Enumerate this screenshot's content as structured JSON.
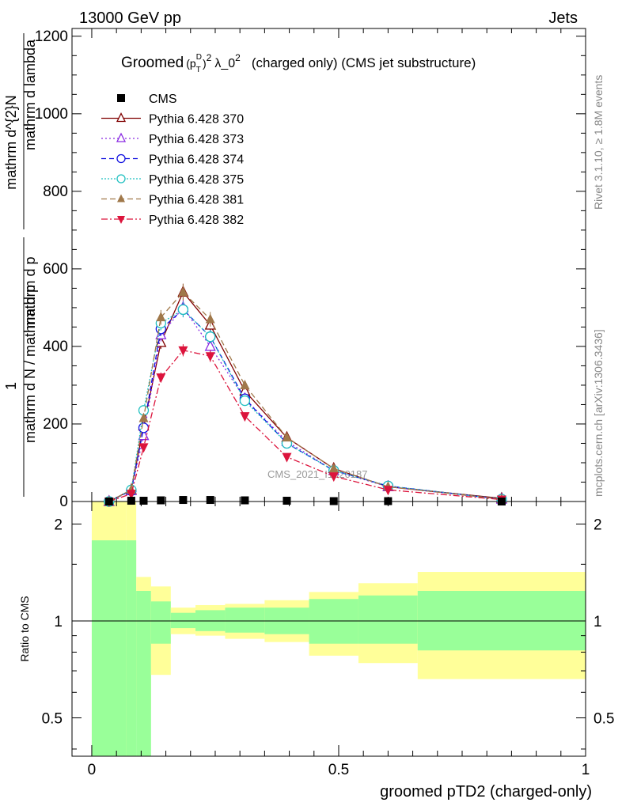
{
  "header": {
    "left": "13000 GeV pp",
    "right": "Jets"
  },
  "side_labels": {
    "top": "Rivet 3.1.10, ≥ 1.8M events",
    "bottom": "mcplots.cern.ch [arXiv:1306.3436]"
  },
  "watermark": "CMS_2021_I1920187",
  "colors": {
    "CMS": "#000000",
    "Pythia 6.428 370": "#800000",
    "Pythia 6.428 373": "#8a2be2",
    "Pythia 6.428 374": "#1010e0",
    "Pythia 6.428 375": "#20c0c0",
    "Pythia 6.428 381": "#a0784a",
    "Pythia 6.428 382": "#dc143c",
    "band_inner": "#99ff99",
    "band_outer": "#ffff99"
  },
  "chart_data": [
    {
      "type": "line",
      "title": "Groomed (p_T^D)^2 λ_0^2 (charged only) (CMS jet substructure)",
      "title_parts": {
        "lead": "Groomed",
        "p": "(p",
        "sub": "T",
        "sup_d": "D",
        "close": ")",
        "sup2": "2",
        "lambda": "λ_0",
        "sup_lambda": "2",
        "tail": "(charged only) (CMS jet substructure)"
      },
      "ylabel": "1 / mathrm d N / mathrm d p_T mathrm d p_T mathrm d N / mathrm d lambda",
      "ylabel_parts": {
        "numerator_top": "mathrm d^{2}N",
        "frac_top_a": "mathrm d p",
        "frac_top_b": "mathrm d lambda",
        "one": "1",
        "frac_bottom": "mathrm d N / mathrm d p"
      },
      "xlim": [
        -0.04,
        1.0
      ],
      "ylim": [
        0,
        1220
      ],
      "yticks": [
        0,
        200,
        400,
        600,
        800,
        1000,
        1200
      ],
      "legend_position": "top-left",
      "x": [
        0.035,
        0.08,
        0.105,
        0.14,
        0.185,
        0.24,
        0.31,
        0.395,
        0.49,
        0.6,
        0.83
      ],
      "series": [
        {
          "name": "CMS",
          "marker": "square",
          "values": [
            0,
            2,
            2,
            3,
            4,
            4,
            3,
            2,
            1,
            1,
            0
          ]
        },
        {
          "name": "Pythia 6.428 370",
          "marker": "triangle-open",
          "values": [
            0,
            30,
            195,
            410,
            540,
            455,
            285,
            165,
            85,
            38,
            8
          ]
        },
        {
          "name": "Pythia 6.428 373",
          "marker": "triangle-open",
          "values": [
            0,
            28,
            170,
            430,
            500,
            400,
            265,
            155,
            80,
            38,
            6
          ]
        },
        {
          "name": "Pythia 6.428 374",
          "marker": "circle-open",
          "values": [
            0,
            28,
            190,
            445,
            495,
            425,
            265,
            150,
            80,
            40,
            6
          ]
        },
        {
          "name": "Pythia 6.428 375",
          "marker": "circle-open",
          "values": [
            0,
            30,
            235,
            460,
            495,
            425,
            260,
            150,
            80,
            40,
            6
          ]
        },
        {
          "name": "Pythia 6.428 381",
          "marker": "triangle-filled",
          "values": [
            0,
            30,
            215,
            475,
            540,
            470,
            300,
            165,
            85,
            38,
            6
          ]
        },
        {
          "name": "Pythia 6.428 382",
          "marker": "triangle-down-filled",
          "values": [
            0,
            20,
            140,
            320,
            390,
            375,
            220,
            115,
            65,
            30,
            5
          ]
        }
      ]
    },
    {
      "type": "area",
      "ylabel": "Ratio to CMS",
      "xlabel": "groomed pTD2 (charged-only)",
      "xlim": [
        -0.04,
        1.0
      ],
      "ylim": [
        0.38,
        2.35
      ],
      "log_y": true,
      "yticks": [
        0.5,
        1,
        2
      ],
      "xticks": [
        0,
        0.5,
        1
      ],
      "bins": [
        0,
        0.07,
        0.09,
        0.12,
        0.16,
        0.21,
        0.27,
        0.35,
        0.44,
        0.54,
        0.66,
        1.0
      ],
      "band_inner_hi": [
        1.78,
        1.78,
        1.24,
        1.15,
        1.06,
        1.08,
        1.1,
        1.1,
        1.17,
        1.2,
        1.24
      ],
      "band_inner_lo": [
        0.01,
        0.01,
        0.01,
        0.85,
        0.95,
        0.93,
        0.92,
        0.91,
        0.85,
        0.85,
        0.81
      ],
      "band_outer_hi": [
        3.0,
        3.0,
        1.37,
        1.28,
        1.1,
        1.12,
        1.13,
        1.16,
        1.23,
        1.31,
        1.42
      ],
      "band_outer_lo": [
        0.01,
        0.01,
        0.53,
        0.68,
        0.91,
        0.9,
        0.88,
        0.86,
        0.78,
        0.74,
        0.66
      ]
    }
  ]
}
